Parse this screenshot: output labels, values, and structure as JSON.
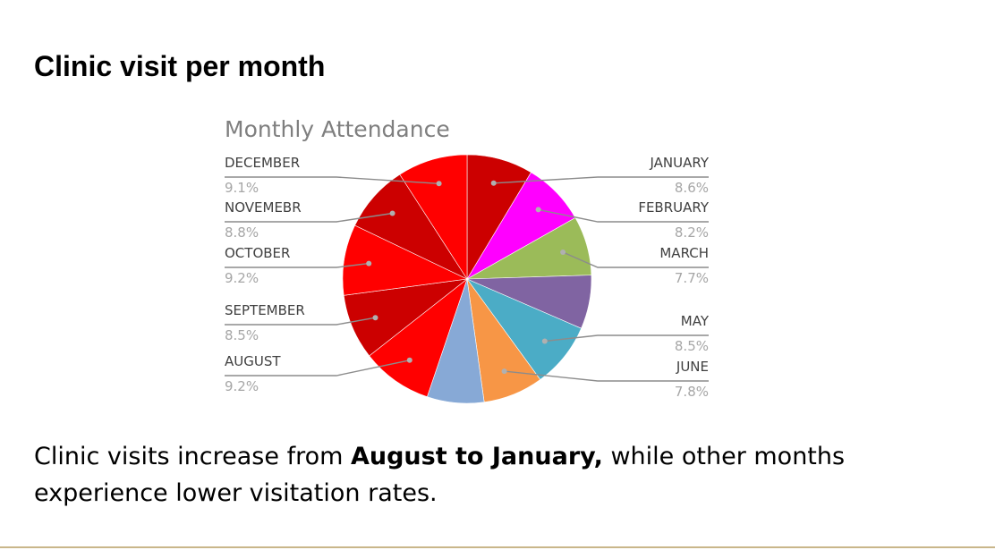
{
  "slide": {
    "title": "Clinic visit per month",
    "summary_before": "Clinic visits increase from ",
    "summary_bold": "August to January,",
    "summary_after": " while other months experience lower visitation rates."
  },
  "chart_data": {
    "type": "pie",
    "title": "Monthly Attendance",
    "start_angle_deg": 0,
    "direction": "clockwise",
    "slices": [
      {
        "label": "JANUARY",
        "pct_label": "8.6%",
        "value": 8.6,
        "color": "#cc0000",
        "side": "right"
      },
      {
        "label": "FEBRUARY",
        "pct_label": "8.2%",
        "value": 8.2,
        "color": "#ff00ff",
        "side": "right"
      },
      {
        "label": "MARCH",
        "pct_label": "7.7%",
        "value": 7.7,
        "color": "#9bbb59",
        "side": "right"
      },
      {
        "label": "",
        "pct_label": "",
        "value": 7.0,
        "color": "#8064a2",
        "side": "right"
      },
      {
        "label": "MAY",
        "pct_label": "8.5%",
        "value": 8.5,
        "color": "#4bacc6",
        "side": "right"
      },
      {
        "label": "JUNE",
        "pct_label": "7.8%",
        "value": 7.8,
        "color": "#f79646",
        "side": "right"
      },
      {
        "label": "",
        "pct_label": "",
        "value": 7.4,
        "color": "#87a9d6",
        "side": "left"
      },
      {
        "label": "AUGUST",
        "pct_label": "9.2%",
        "value": 9.2,
        "color": "#ff0000",
        "side": "left"
      },
      {
        "label": "SEPTEMBER",
        "pct_label": "8.5%",
        "value": 8.5,
        "color": "#cc0000",
        "side": "left"
      },
      {
        "label": "OCTOBER",
        "pct_label": "9.2%",
        "value": 9.2,
        "color": "#ff0000",
        "side": "left"
      },
      {
        "label": "NOVEMEBR",
        "pct_label": "8.8%",
        "value": 8.8,
        "color": "#cc0000",
        "side": "left"
      },
      {
        "label": "DECEMBER",
        "pct_label": "9.1%",
        "value": 9.1,
        "color": "#ff0000",
        "side": "left"
      }
    ]
  }
}
